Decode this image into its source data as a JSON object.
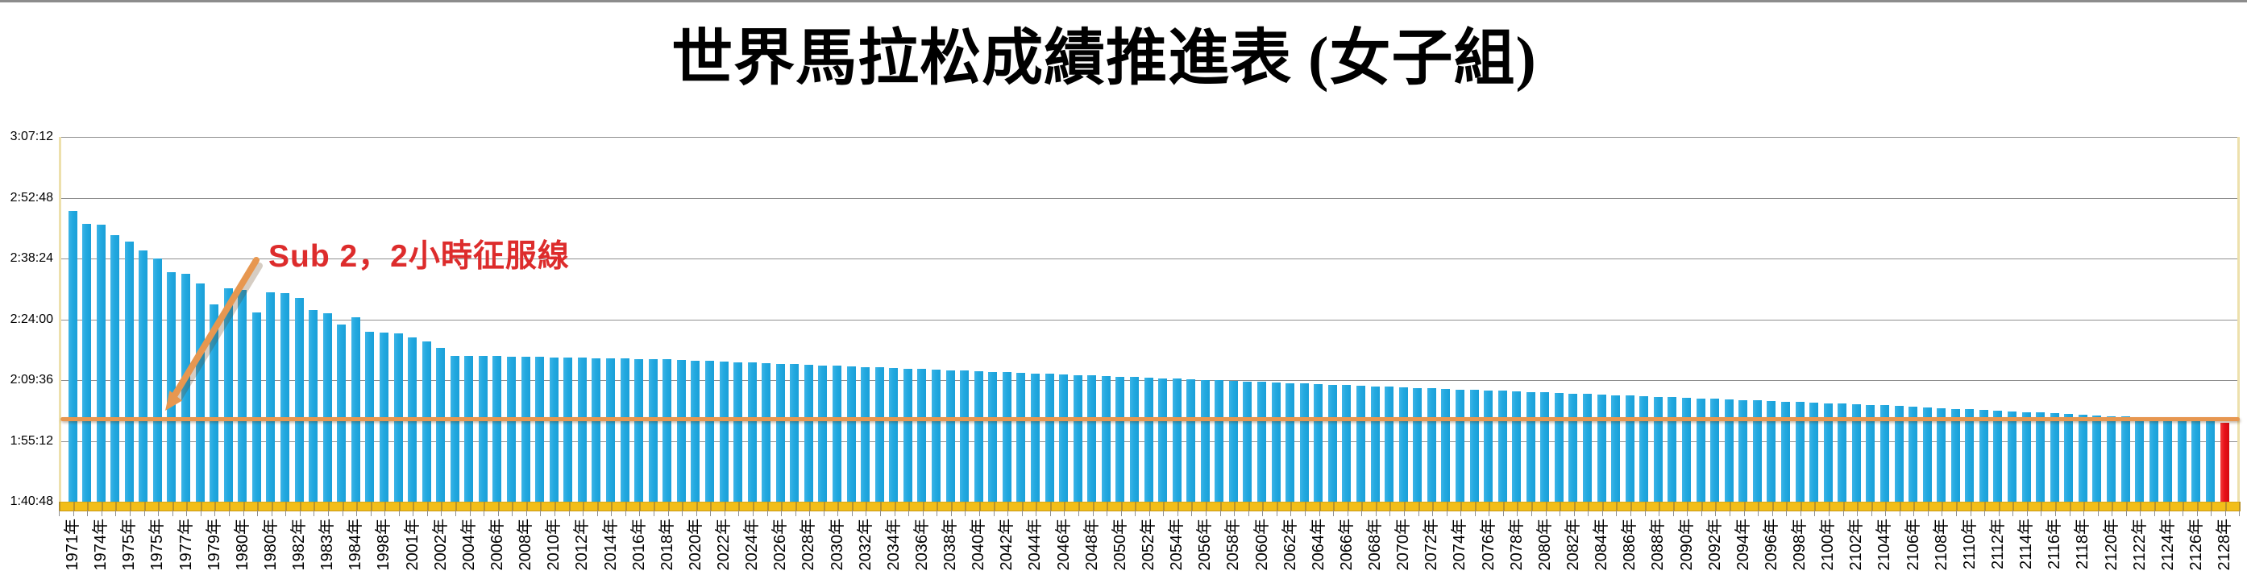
{
  "title": "世界馬拉松成績推進表 (女子組)",
  "annotation": {
    "text": "Sub 2，2小時征服線"
  },
  "colors": {
    "bar_blue": "#22a9e0",
    "final_bar_red": "#e8111a",
    "sub2_line_orange": "#e79750",
    "category_axis_gold": "#f2be19",
    "gridline_gray": "#8f8f8f",
    "annotation_red": "#dd2c2c",
    "plot_side_border": "#ede0ac"
  },
  "chart_data": {
    "type": "bar",
    "title": "世界馬拉松成績推進表 (女子組)",
    "xlabel": "",
    "ylabel": "",
    "legend": "none",
    "grid": true,
    "y_axis": {
      "tick_labels_top_to_bottom": [
        "3:07:12",
        "2:52:48",
        "2:38:24",
        "2:24:00",
        "2:09:36",
        "1:55:12",
        "1:40:48"
      ],
      "min_seconds": 6048,
      "max_seconds": 11232,
      "units": "h:mm:ss marathon time"
    },
    "x_axis": {
      "note": "category labels shown under every other bar, rotated 90 degrees",
      "labels": [
        "1971年",
        "1974年",
        "1975年",
        "1975年",
        "1977年",
        "1979年",
        "1980年",
        "1980年",
        "1982年",
        "1983年",
        "1984年",
        "1998年",
        "2001年",
        "2002年",
        "2004年",
        "2006年",
        "2008年",
        "2010年",
        "2012年",
        "2014年",
        "2016年",
        "2018年",
        "2020年",
        "2022年",
        "2024年",
        "2026年",
        "2028年",
        "2030年",
        "2032年",
        "2034年",
        "2036年",
        "2038年",
        "2040年",
        "2042年",
        "2044年",
        "2046年",
        "2048年",
        "2050年",
        "2052年",
        "2054年",
        "2056年",
        "2058年",
        "2060年",
        "2062年",
        "2064年",
        "2066年",
        "2068年",
        "2070年",
        "2072年",
        "2074年",
        "2076年",
        "2078年",
        "2080年",
        "2082年",
        "2084年",
        "2086年",
        "2088年",
        "2090年",
        "2092年",
        "2094年",
        "2096年",
        "2098年",
        "2100年",
        "2102年",
        "2104年",
        "2106年",
        "2108年",
        "2110年",
        "2112年",
        "2114年",
        "2116年",
        "2118年",
        "2120年",
        "2122年",
        "2124年",
        "2126年",
        "2128年"
      ]
    },
    "bars": {
      "count": 153,
      "values_seconds": [
        10180,
        9996,
        9984,
        9834,
        9744,
        9615,
        9499,
        9315,
        9287,
        9150,
        8853,
        9083,
        9057,
        8741,
        9027,
        9010,
        8941,
        8774,
        8729,
        8563,
        8666,
        8466,
        8447,
        8443,
        8386,
        8327,
        8238,
        8125,
        8125,
        8121,
        8117,
        8113,
        8109,
        8105,
        8101,
        8096,
        8092,
        8088,
        8084,
        8080,
        8076,
        8072,
        8068,
        8060,
        8053,
        8045,
        8038,
        8030,
        8023,
        8015,
        8007,
        8000,
        7992,
        7985,
        7977,
        7970,
        7962,
        7955,
        7947,
        7939,
        7932,
        7924,
        7917,
        7909,
        7902,
        7894,
        7886,
        7879,
        7871,
        7864,
        7856,
        7849,
        7841,
        7833,
        7826,
        7818,
        7811,
        7803,
        7796,
        7788,
        7780,
        7773,
        7765,
        7758,
        7750,
        7743,
        7735,
        7728,
        7720,
        7712,
        7705,
        7697,
        7690,
        7682,
        7675,
        7667,
        7659,
        7652,
        7644,
        7637,
        7629,
        7622,
        7614,
        7607,
        7599,
        7591,
        7584,
        7576,
        7569,
        7561,
        7554,
        7546,
        7538,
        7531,
        7523,
        7516,
        7508,
        7501,
        7493,
        7486,
        7478,
        7470,
        7463,
        7455,
        7448,
        7440,
        7433,
        7425,
        7416,
        7406,
        7397,
        7388,
        7378,
        7369,
        7359,
        7350,
        7341,
        7331,
        7322,
        7313,
        7303,
        7294,
        7284,
        7275,
        7266,
        7256,
        7247,
        7238,
        7228,
        7219,
        7209,
        7200,
        7165
      ],
      "final_bar_highlighted_red": true,
      "example_readings": [
        "1971≈2:49:40",
        "1975≈2:38:19",
        "1979≈2:27:33",
        "1983≈2:22:43",
        "1998≈2:20:47",
        "2002≈2:17:18",
        "2003≈2:15:25",
        "2128≈1:59:25"
      ]
    },
    "reference_line": {
      "label": "Sub 2，2小時征服線",
      "value_seconds": 7200,
      "value_label": "2:00:00",
      "color": "#e79750"
    }
  }
}
